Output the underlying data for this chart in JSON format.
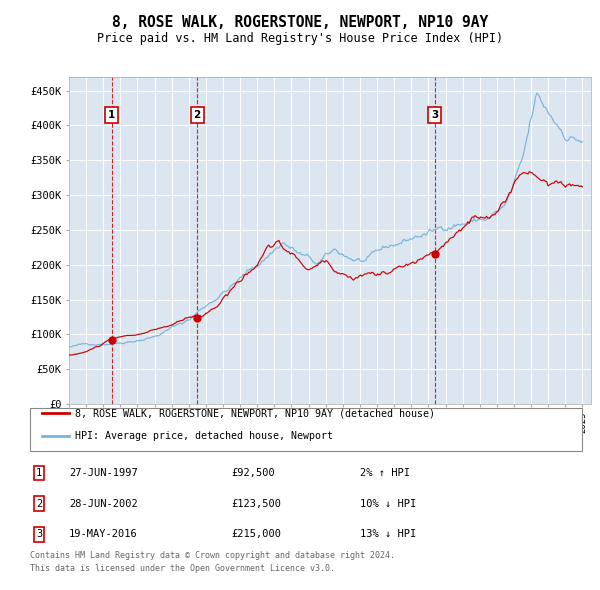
{
  "title": "8, ROSE WALK, ROGERSTONE, NEWPORT, NP10 9AY",
  "subtitle": "Price paid vs. HM Land Registry's House Price Index (HPI)",
  "legend_label_red": "8, ROSE WALK, ROGERSTONE, NEWPORT, NP10 9AY (detached house)",
  "legend_label_blue": "HPI: Average price, detached house, Newport",
  "footer_line1": "Contains HM Land Registry data © Crown copyright and database right 2024.",
  "footer_line2": "This data is licensed under the Open Government Licence v3.0.",
  "transactions": [
    {
      "num": 1,
      "date": "27-JUN-1997",
      "price": 92500,
      "pct": "2%",
      "dir": "↑"
    },
    {
      "num": 2,
      "date": "28-JUN-2002",
      "price": 123500,
      "pct": "10%",
      "dir": "↓"
    },
    {
      "num": 3,
      "date": "19-MAY-2016",
      "price": 215000,
      "pct": "13%",
      "dir": "↓"
    }
  ],
  "transaction_dates_decimal": [
    1997.49,
    2002.49,
    2016.38
  ],
  "ylim": [
    0,
    470000
  ],
  "yticks": [
    0,
    50000,
    100000,
    150000,
    200000,
    250000,
    300000,
    350000,
    400000,
    450000
  ],
  "ytick_labels": [
    "£0",
    "£50K",
    "£100K",
    "£150K",
    "£200K",
    "£250K",
    "£300K",
    "£350K",
    "£400K",
    "£450K"
  ],
  "xlim_start": 1995.0,
  "xlim_end": 2025.5,
  "background_color": "#ffffff",
  "plot_bg_color": "#dce6f0",
  "grid_color": "#ffffff",
  "red_color": "#cc0000",
  "blue_color": "#7ab4d8",
  "dashed_color": "#cc0000",
  "box_color": "#cc0000",
  "hpi_keypoints": [
    [
      1995.0,
      82000
    ],
    [
      1997.0,
      88000
    ],
    [
      1998.0,
      92000
    ],
    [
      2000.0,
      105000
    ],
    [
      2002.0,
      130000
    ],
    [
      2004.0,
      175000
    ],
    [
      2006.0,
      215000
    ],
    [
      2007.5,
      255000
    ],
    [
      2008.5,
      235000
    ],
    [
      2009.5,
      215000
    ],
    [
      2010.5,
      230000
    ],
    [
      2011.5,
      220000
    ],
    [
      2012.5,
      215000
    ],
    [
      2013.5,
      225000
    ],
    [
      2014.5,
      235000
    ],
    [
      2015.5,
      245000
    ],
    [
      2016.5,
      250000
    ],
    [
      2017.5,
      265000
    ],
    [
      2018.5,
      270000
    ],
    [
      2019.5,
      275000
    ],
    [
      2020.5,
      290000
    ],
    [
      2021.5,
      345000
    ],
    [
      2022.3,
      430000
    ],
    [
      2022.8,
      410000
    ],
    [
      2023.5,
      390000
    ],
    [
      2024.0,
      380000
    ],
    [
      2025.0,
      375000
    ]
  ],
  "red_keypoints_seg1": [
    [
      1995.0,
      70000
    ],
    [
      1996.0,
      75000
    ],
    [
      1997.49,
      92500
    ],
    [
      1999.0,
      98000
    ],
    [
      2000.0,
      103000
    ],
    [
      2001.0,
      110000
    ],
    [
      2002.49,
      123500
    ]
  ],
  "red_keypoints_seg2": [
    [
      2002.49,
      123500
    ],
    [
      2003.5,
      140000
    ],
    [
      2004.5,
      168000
    ],
    [
      2005.5,
      195000
    ],
    [
      2006.5,
      225000
    ],
    [
      2007.2,
      235000
    ],
    [
      2007.8,
      220000
    ],
    [
      2008.5,
      205000
    ],
    [
      2009.0,
      195000
    ],
    [
      2009.5,
      198000
    ],
    [
      2010.0,
      205000
    ],
    [
      2010.5,
      200000
    ],
    [
      2011.0,
      195000
    ],
    [
      2011.5,
      192000
    ],
    [
      2012.0,
      195000
    ],
    [
      2012.5,
      198000
    ],
    [
      2013.0,
      195000
    ],
    [
      2013.5,
      198000
    ],
    [
      2014.0,
      200000
    ],
    [
      2014.5,
      205000
    ],
    [
      2015.0,
      205000
    ],
    [
      2015.5,
      210000
    ],
    [
      2016.38,
      215000
    ]
  ],
  "red_keypoints_seg3": [
    [
      2016.38,
      215000
    ],
    [
      2017.0,
      230000
    ],
    [
      2017.5,
      240000
    ],
    [
      2018.0,
      250000
    ],
    [
      2018.5,
      265000
    ],
    [
      2019.0,
      270000
    ],
    [
      2019.5,
      275000
    ],
    [
      2020.0,
      280000
    ],
    [
      2020.5,
      295000
    ],
    [
      2021.0,
      315000
    ],
    [
      2021.5,
      340000
    ],
    [
      2022.0,
      350000
    ],
    [
      2022.3,
      345000
    ],
    [
      2022.6,
      340000
    ],
    [
      2023.0,
      335000
    ],
    [
      2023.5,
      345000
    ],
    [
      2024.0,
      340000
    ],
    [
      2024.5,
      335000
    ],
    [
      2025.0,
      330000
    ]
  ]
}
